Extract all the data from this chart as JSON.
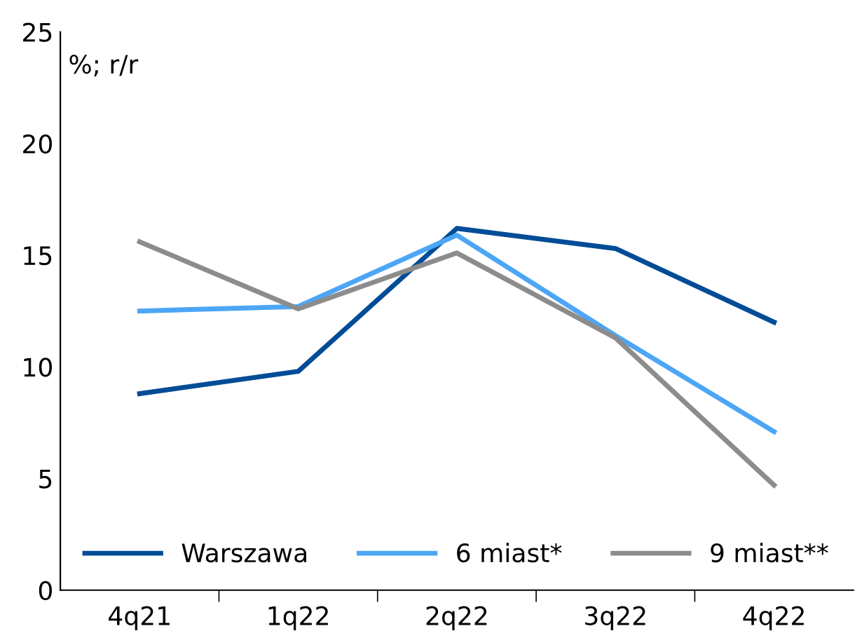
{
  "chart_data": {
    "type": "line",
    "ylabel": "%; r/r",
    "categories": [
      "4q21",
      "1q22",
      "2q22",
      "3q22",
      "4q22"
    ],
    "series": [
      {
        "name": "Warszawa",
        "color": "#004c97",
        "values": [
          8.8,
          9.8,
          16.2,
          15.3,
          12.0
        ]
      },
      {
        "name": "6 miast*",
        "color": "#4da6f5",
        "values": [
          12.5,
          12.7,
          15.9,
          11.4,
          7.1
        ]
      },
      {
        "name": "9 miast**",
        "color": "#8c8c8c",
        "values": [
          15.6,
          12.6,
          15.1,
          11.3,
          4.7
        ]
      }
    ],
    "ylim": [
      0,
      25
    ],
    "yticks": [
      0,
      5,
      10,
      15,
      20,
      25
    ],
    "grid": false,
    "legend": "bottom",
    "marker": "none",
    "line_style": "solid"
  }
}
